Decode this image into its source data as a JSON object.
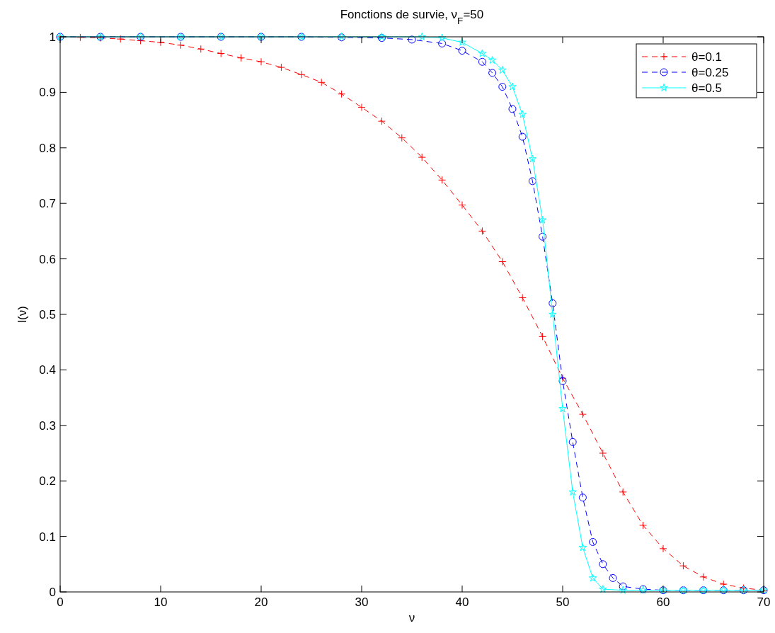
{
  "chart_data": {
    "type": "line",
    "title": "Fonctions de survie, ν$_{F}$=50",
    "xlabel": "ν",
    "ylabel": "l(ν)",
    "xlim": [
      0,
      70
    ],
    "ylim": [
      0,
      1
    ],
    "xticks": [
      0,
      10,
      20,
      30,
      40,
      50,
      60,
      70
    ],
    "yticks": [
      0,
      0.1,
      0.2,
      0.3,
      0.4,
      0.5,
      0.6,
      0.7,
      0.8,
      0.9,
      1
    ],
    "grid": false,
    "legend": "top right",
    "series": [
      {
        "name": "θ=0.1",
        "color": "#ff0000",
        "marker": "cross",
        "line_style": "dashed",
        "x": [
          0,
          2,
          4,
          6,
          8,
          10,
          12,
          14,
          16,
          18,
          20,
          22,
          24,
          26,
          28,
          30,
          32,
          34,
          36,
          38,
          40,
          42,
          44,
          46,
          48,
          50,
          52,
          54,
          56,
          58,
          60,
          62,
          64,
          66,
          68,
          70
        ],
        "values": [
          1,
          0.999,
          0.998,
          0.996,
          0.993,
          0.99,
          0.985,
          0.978,
          0.97,
          0.962,
          0.955,
          0.945,
          0.932,
          0.918,
          0.897,
          0.873,
          0.848,
          0.818,
          0.783,
          0.742,
          0.697,
          0.65,
          0.595,
          0.53,
          0.46,
          0.385,
          0.32,
          0.25,
          0.18,
          0.12,
          0.078,
          0.047,
          0.027,
          0.014,
          0.007,
          0.003
        ]
      },
      {
        "name": "θ=0.25",
        "color": "#0000ff",
        "marker": "circle",
        "line_style": "dashed",
        "x": [
          0,
          4,
          8,
          12,
          16,
          20,
          24,
          28,
          32,
          35,
          38,
          40,
          42,
          43,
          44,
          45,
          46,
          47,
          48,
          49,
          50,
          51,
          52,
          53,
          54,
          55,
          56,
          58,
          60,
          62,
          64,
          66,
          68,
          70
        ],
        "values": [
          1,
          1,
          1,
          1,
          1,
          1,
          1,
          0.999,
          0.998,
          0.995,
          0.988,
          0.975,
          0.955,
          0.935,
          0.91,
          0.87,
          0.82,
          0.74,
          0.64,
          0.52,
          0.38,
          0.27,
          0.17,
          0.09,
          0.05,
          0.025,
          0.01,
          0.005,
          0.003,
          0.003,
          0.003,
          0.003,
          0.003,
          0.003
        ]
      },
      {
        "name": "θ=0.5",
        "color": "#00ffff",
        "marker": "star",
        "line_style": "solid",
        "x": [
          0,
          4,
          8,
          12,
          16,
          20,
          24,
          28,
          32,
          36,
          38,
          40,
          42,
          43,
          44,
          45,
          46,
          47,
          48,
          49,
          50,
          51,
          52,
          53,
          54,
          56,
          58,
          60,
          62,
          64,
          66,
          68,
          70
        ],
        "values": [
          1,
          1,
          1,
          1,
          1,
          1,
          1,
          1,
          1,
          1,
          0.998,
          0.99,
          0.97,
          0.958,
          0.94,
          0.91,
          0.86,
          0.78,
          0.67,
          0.5,
          0.33,
          0.18,
          0.08,
          0.025,
          0.005,
          0.003,
          0.003,
          0.003,
          0.003,
          0.003,
          0.003,
          0.003,
          0.003
        ]
      }
    ]
  }
}
